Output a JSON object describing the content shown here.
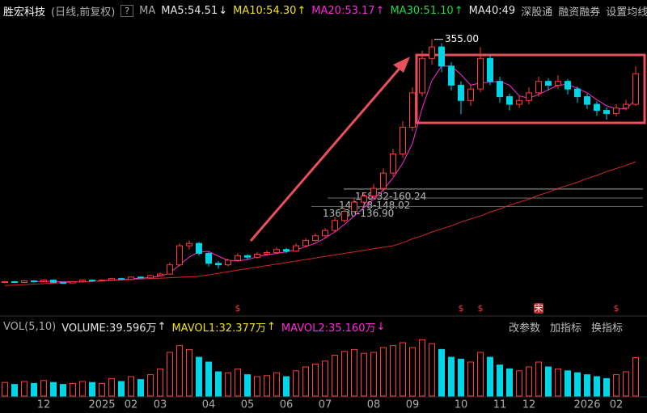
{
  "header": {
    "name": "胜宏科技",
    "mode": "(日线,前复权)",
    "help": "?",
    "ma_title": "MA",
    "ma": [
      {
        "label": "MA5:54.51",
        "arrow": "↓",
        "color": "#e6e6e6"
      },
      {
        "label": "MA10:54.30",
        "arrow": "↑",
        "color": "#f0e020"
      },
      {
        "label": "MA20:53.17",
        "arrow": "↑",
        "color": "#ff2bd8"
      },
      {
        "label": "MA30:51.10",
        "arrow": "↑",
        "color": "#22d84a"
      },
      {
        "label": "MA40:49",
        "color": "#e6e6e6"
      }
    ],
    "links": [
      "深股通",
      "融资融券",
      "设置均线"
    ]
  },
  "chart_data": {
    "type": "candlestick",
    "up_color": "#ff3b3b",
    "down_color": "#00d5e6",
    "ylim": [
      10,
      380
    ],
    "candles": [
      [
        37,
        39,
        36,
        38
      ],
      [
        38,
        39,
        36,
        37
      ],
      [
        37,
        40,
        36,
        39
      ],
      [
        39,
        40,
        37,
        38
      ],
      [
        38,
        41,
        37,
        40
      ],
      [
        40,
        41,
        36,
        37
      ],
      [
        37,
        38,
        36.29,
        36.3
      ],
      [
        36.3,
        39,
        36,
        38
      ],
      [
        38,
        41,
        37,
        40
      ],
      [
        40,
        41,
        38,
        39
      ],
      [
        39,
        41,
        38,
        40
      ],
      [
        40,
        43,
        39,
        42
      ],
      [
        42,
        43,
        40,
        41
      ],
      [
        41,
        45,
        40,
        44
      ],
      [
        44,
        45,
        42,
        43
      ],
      [
        43,
        47,
        42,
        46
      ],
      [
        46,
        50,
        45,
        48
      ],
      [
        48,
        63,
        47,
        60
      ],
      [
        60,
        88,
        58,
        85
      ],
      [
        85,
        92,
        80,
        88
      ],
      [
        88,
        90,
        72,
        75
      ],
      [
        75,
        77,
        58,
        62
      ],
      [
        62,
        65,
        55,
        60
      ],
      [
        60,
        68,
        58,
        66
      ],
      [
        66,
        75,
        64,
        72
      ],
      [
        72,
        74,
        67,
        70
      ],
      [
        70,
        77,
        68,
        74
      ],
      [
        74,
        79,
        72,
        76
      ],
      [
        76,
        83,
        74,
        80
      ],
      [
        80,
        82,
        75,
        78
      ],
      [
        78,
        88,
        77,
        85
      ],
      [
        85,
        95,
        83,
        92
      ],
      [
        92,
        101,
        90,
        98
      ],
      [
        98,
        108,
        95,
        105
      ],
      [
        105,
        122,
        103,
        118
      ],
      [
        118,
        134,
        115,
        130
      ],
      [
        130,
        147,
        127,
        142
      ],
      [
        142,
        155,
        138,
        150
      ],
      [
        150,
        166,
        146,
        160
      ],
      [
        160,
        186,
        156,
        180
      ],
      [
        180,
        212,
        176,
        205
      ],
      [
        205,
        248,
        200,
        240
      ],
      [
        240,
        292,
        235,
        285
      ],
      [
        285,
        340,
        280,
        330
      ],
      [
        330,
        355,
        322,
        345
      ],
      [
        345,
        350,
        312,
        320
      ],
      [
        320,
        325,
        288,
        295
      ],
      [
        295,
        300,
        257,
        275
      ],
      [
        275,
        296,
        268,
        290
      ],
      [
        290,
        345,
        286,
        330
      ],
      [
        330,
        335,
        295,
        300
      ],
      [
        300,
        306,
        272,
        280
      ],
      [
        280,
        284,
        262,
        270
      ],
      [
        270,
        281,
        265,
        275
      ],
      [
        275,
        292,
        270,
        285
      ],
      [
        285,
        306,
        280,
        300
      ],
      [
        300,
        304,
        288,
        295
      ],
      [
        295,
        308,
        290,
        300
      ],
      [
        300,
        303,
        283,
        290
      ],
      [
        290,
        293,
        272,
        280
      ],
      [
        280,
        284,
        264,
        270
      ],
      [
        270,
        274,
        255,
        262
      ],
      [
        262,
        266,
        250,
        258
      ],
      [
        258,
        270,
        254,
        265
      ],
      [
        265,
        276,
        262,
        270
      ],
      [
        270,
        320,
        268,
        310
      ]
    ],
    "categories": [
      null,
      null,
      null,
      null,
      "12",
      null,
      null,
      null,
      null,
      null,
      "2025",
      null,
      null,
      "02",
      null,
      null,
      "03",
      null,
      null,
      null,
      null,
      "04",
      null,
      null,
      null,
      "05",
      null,
      null,
      null,
      "06",
      null,
      null,
      null,
      "07",
      null,
      null,
      null,
      null,
      "08",
      null,
      null,
      null,
      "09",
      null,
      null,
      null,
      null,
      "10",
      null,
      null,
      null,
      "11",
      null,
      null,
      "12",
      null,
      null,
      null,
      null,
      null,
      "2026",
      null,
      null,
      "02",
      null,
      null
    ],
    "events": [
      null,
      null,
      null,
      null,
      null,
      null,
      null,
      null,
      null,
      null,
      null,
      null,
      null,
      null,
      null,
      null,
      null,
      null,
      null,
      null,
      null,
      null,
      null,
      null,
      "$",
      null,
      null,
      null,
      null,
      null,
      null,
      null,
      null,
      null,
      null,
      null,
      null,
      null,
      null,
      null,
      null,
      null,
      null,
      null,
      null,
      null,
      null,
      "$",
      null,
      "$",
      null,
      null,
      null,
      null,
      null,
      "宋",
      null,
      null,
      null,
      null,
      null,
      null,
      null,
      "$",
      null,
      null
    ],
    "ma": [
      {
        "color": "#ff2bd8",
        "values": [
          null,
          null,
          null,
          38,
          38.5,
          38.5,
          37.8,
          37.8,
          37.8,
          38.3,
          39.3,
          40.3,
          40.5,
          41.8,
          42.5,
          43.5,
          45.3,
          49.3,
          59.8,
          70.3,
          77,
          77.5,
          71.3,
          65.8,
          65,
          67,
          70.5,
          73,
          75,
          77,
          79.8,
          83.8,
          88.3,
          95,
          103,
          113,
          124,
          135,
          146,
          158,
          174,
          193,
          219,
          265,
          301,
          320,
          320,
          309,
          295,
          298,
          299,
          300,
          295,
          281,
          278,
          283,
          289,
          295,
          296,
          291,
          285,
          276,
          268,
          264,
          264,
          276
        ]
      },
      {
        "color": "#d02828",
        "values": [
          33,
          33.6,
          34.2,
          34.8,
          35.4,
          36,
          36.6,
          37.2,
          37.8,
          38.4,
          39,
          39.6,
          40.2,
          40.8,
          41.4,
          42,
          42.6,
          43.2,
          43.8,
          44.4,
          45,
          47,
          49,
          51,
          53,
          55,
          57,
          59,
          61,
          63,
          65,
          67,
          69,
          71,
          73,
          75,
          77,
          79,
          81,
          83,
          85,
          89,
          94,
          98,
          103,
          107,
          111,
          116,
          120,
          124,
          129,
          133,
          138,
          142,
          146,
          151,
          155,
          160,
          164,
          168,
          173,
          177,
          182,
          186,
          190,
          195
        ]
      }
    ],
    "levels": [
      {
        "label": "158.32-160.24",
        "low": 158.32,
        "high": 160.24
      },
      {
        "label": "146.78-148.02",
        "low": 146.78,
        "high": 148.02
      },
      {
        "label": "136.30-136.90",
        "low": 136.3,
        "high": 136.9
      }
    ],
    "high_label": "355.00",
    "volume": {
      "title": "VOL(5,10)",
      "items": [
        {
          "label": "VOLUME:39.596万",
          "arrow": "↑",
          "color": "#e6e6e6"
        },
        {
          "label": "MAVOL1:32.377万",
          "arrow": "↑",
          "color": "#f0e020"
        },
        {
          "label": "MAVOL2:35.160万",
          "arrow": "↓",
          "color": "#ff2bd8"
        }
      ],
      "ylim": [
        0,
        60
      ],
      "values": [
        14,
        12,
        15,
        13,
        16,
        14,
        12,
        13,
        15,
        14,
        13,
        18,
        15,
        20,
        17,
        22,
        28,
        45,
        52,
        48,
        40,
        35,
        25,
        24,
        28,
        22,
        20,
        21,
        24,
        20,
        26,
        30,
        33,
        36,
        42,
        46,
        48,
        44,
        45,
        50,
        52,
        55,
        50,
        58,
        54,
        48,
        40,
        38,
        35,
        45,
        40,
        32,
        28,
        26,
        30,
        35,
        30,
        28,
        26,
        24,
        22,
        20,
        18,
        22,
        25,
        39.596
      ]
    },
    "tools": [
      "改参数",
      "加指标",
      "换指标"
    ]
  }
}
